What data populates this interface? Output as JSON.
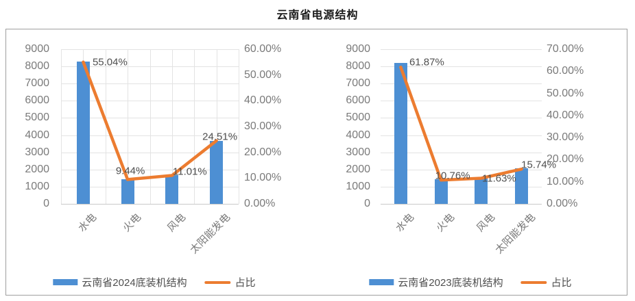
{
  "title": "云南省电源结构",
  "colors": {
    "bar": "#4D8FD3",
    "line": "#EC7C30",
    "grid": "#E3E3E3",
    "axis_line": "#C9C9C9",
    "axis_text": "#7A7A7A",
    "data_label_text": "#4F4F4F",
    "legend_text": "#4F4F4F",
    "border": "#9E9E9E",
    "title_text": "#1A1A1A"
  },
  "chart_data": [
    {
      "type": "bar",
      "combo": "bar+line",
      "categories": [
        "水电",
        "火电",
        "风电",
        "太阳能发电"
      ],
      "category_keys": [
        "hydro",
        "thermal",
        "wind",
        "solar"
      ],
      "series": [
        {
          "name": "云南省2024底装机结构",
          "chart": "bar",
          "axis": "left",
          "values": [
            8300,
            1420,
            1655,
            3680
          ]
        },
        {
          "name": "占比",
          "chart": "line",
          "axis": "right",
          "values": [
            55.04,
            9.44,
            11.01,
            24.51
          ],
          "point_labels": [
            "55.04%",
            "9.44%",
            "11.01%",
            "24.51%"
          ]
        }
      ],
      "y_left": {
        "min": 0,
        "max": 9000,
        "tick_labels": [
          "9000",
          "8000",
          "7000",
          "6000",
          "5000",
          "4000",
          "3000",
          "2000",
          "1000",
          "0"
        ]
      },
      "y_right": {
        "min": 0,
        "max": 60,
        "tick_labels": [
          "60.00%",
          "50.00%",
          "40.00%",
          "30.00%",
          "20.00%",
          "10.00%",
          "0.00%"
        ]
      },
      "legend": [
        {
          "label": "云南省2024底装机结构",
          "swatch": "bar"
        },
        {
          "label": "占比",
          "swatch": "line"
        }
      ],
      "grid": {
        "horizontal": true,
        "vertical": true
      },
      "legend_position": "bottom"
    },
    {
      "type": "bar",
      "combo": "bar+line",
      "categories": [
        "水电",
        "火电",
        "风电",
        "太阳能发电"
      ],
      "category_keys": [
        "hydro",
        "thermal",
        "wind",
        "solar"
      ],
      "series": [
        {
          "name": "云南省2023底装机结构",
          "chart": "bar",
          "axis": "left",
          "values": [
            8210,
            1430,
            1545,
            2090
          ]
        },
        {
          "name": "占比",
          "chart": "line",
          "axis": "right",
          "values": [
            61.87,
            10.76,
            11.63,
            15.74
          ],
          "point_labels": [
            "61.87%",
            "10.76%",
            "11.63%",
            "15.74%"
          ]
        }
      ],
      "y_left": {
        "min": 0,
        "max": 9000,
        "tick_labels": [
          "9000",
          "8000",
          "7000",
          "6000",
          "5000",
          "4000",
          "3000",
          "2000",
          "1000",
          "0"
        ]
      },
      "y_right": {
        "min": 0,
        "max": 70,
        "tick_labels": [
          "70.00%",
          "60.00%",
          "50.00%",
          "40.00%",
          "30.00%",
          "20.00%",
          "10.00%",
          "0.00%"
        ]
      },
      "legend": [
        {
          "label": "云南省2023底装机结构",
          "swatch": "bar"
        },
        {
          "label": "占比",
          "swatch": "line"
        }
      ],
      "grid": {
        "horizontal": true,
        "vertical": false
      },
      "legend_position": "bottom"
    }
  ]
}
